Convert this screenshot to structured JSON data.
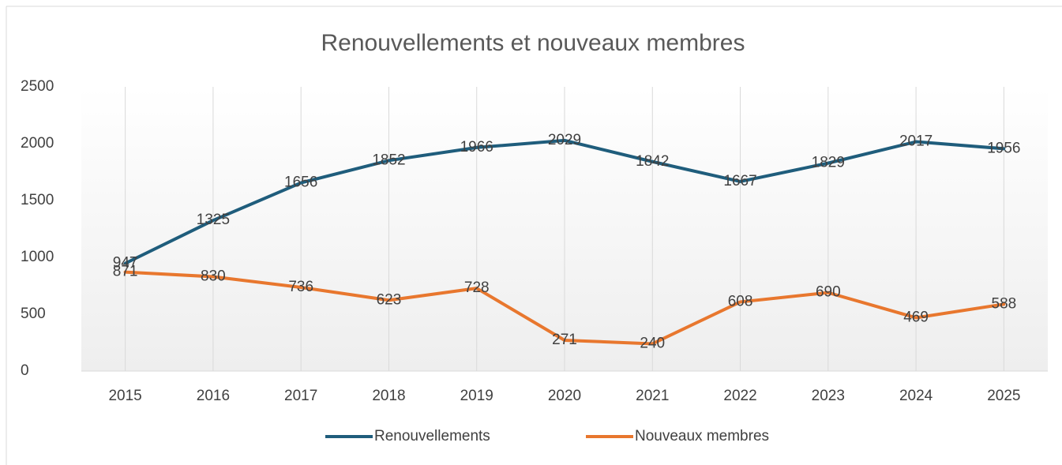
{
  "chart_data": {
    "type": "line",
    "title": "Renouvellements et nouveaux membres",
    "categories": [
      "2015",
      "2016",
      "2017",
      "2018",
      "2019",
      "2020",
      "2021",
      "2022",
      "2023",
      "2024",
      "2025"
    ],
    "series": [
      {
        "name": "Renouvellements",
        "color": "#1f5d7c",
        "values": [
          947,
          1325,
          1656,
          1852,
          1966,
          2029,
          1842,
          1667,
          1829,
          2017,
          1956
        ]
      },
      {
        "name": "Nouveaux membres",
        "color": "#e8772e",
        "values": [
          871,
          830,
          736,
          623,
          728,
          271,
          240,
          608,
          690,
          469,
          588
        ]
      }
    ],
    "ylim": [
      0,
      2500
    ],
    "yticks": [
      0,
      500,
      1000,
      1500,
      2000,
      2500
    ],
    "grid": true,
    "legend": "bottom"
  }
}
